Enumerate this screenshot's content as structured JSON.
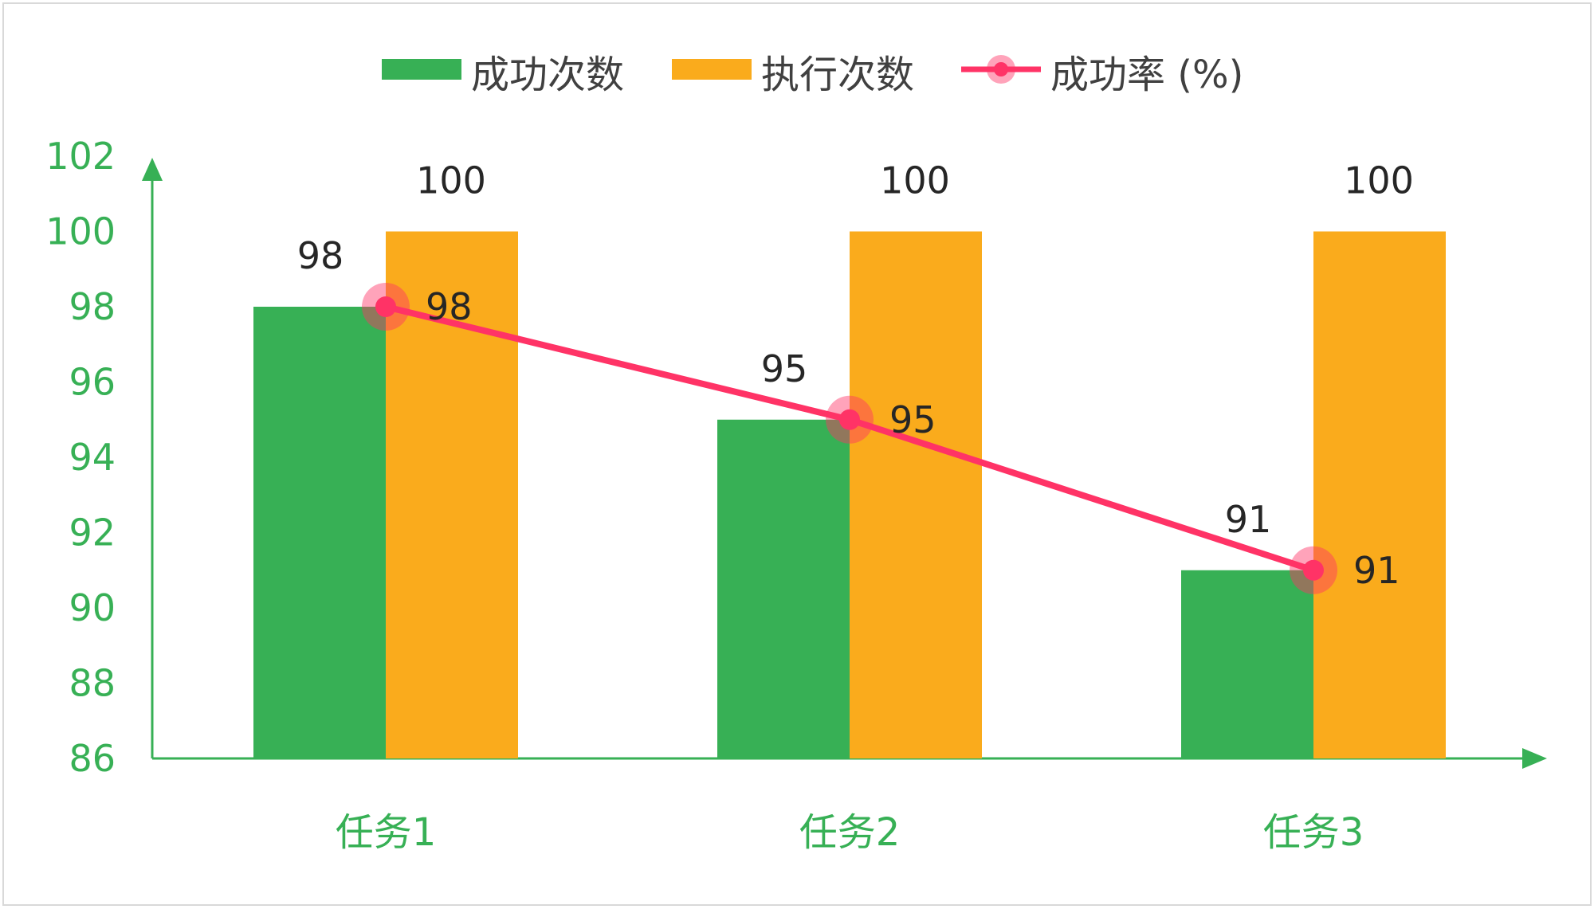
{
  "chart_data": {
    "type": "bar",
    "categories": [
      "任务1",
      "任务2",
      "任务3"
    ],
    "series": [
      {
        "name": "成功次数",
        "type": "bar",
        "values": [
          98,
          95,
          91
        ],
        "color": "#37b055"
      },
      {
        "name": "执行次数",
        "type": "bar",
        "values": [
          100,
          100,
          100
        ],
        "color": "#faab1c"
      },
      {
        "name": "成功率 (%)",
        "type": "line",
        "values": [
          98,
          95,
          91
        ],
        "color": "#ff3366"
      }
    ],
    "yticks": [
      "86",
      "88",
      "90",
      "92",
      "94",
      "96",
      "98",
      "100",
      "102"
    ],
    "ylim": [
      86,
      102
    ],
    "axis_color": "#37b055",
    "grid": false,
    "legend_position": "top"
  }
}
